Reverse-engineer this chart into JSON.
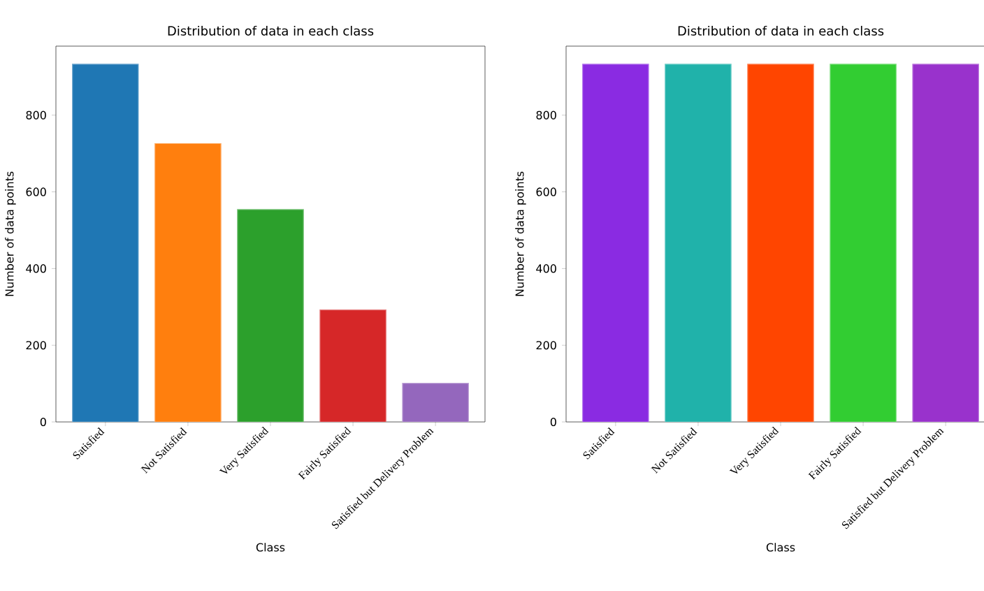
{
  "chart_data": [
    {
      "type": "bar",
      "title": "Distribution of data in each class",
      "xlabel": "Class",
      "ylabel": "Number of data points",
      "categories": [
        "Satisfied",
        "Not Satisfied",
        "Very Satisfied",
        "Fairly Satisfied",
        "Satisfied but Delivery Problem"
      ],
      "values": [
        933,
        726,
        554,
        292,
        101
      ],
      "colors": [
        "#1f77b4",
        "#ff7f0e",
        "#2ca02c",
        "#d62728",
        "#9467bd"
      ],
      "ylim": [
        0,
        980
      ],
      "yticks": [
        0,
        200,
        400,
        600,
        800
      ]
    },
    {
      "type": "bar",
      "title": "Distribution of data in each class",
      "xlabel": "Class",
      "ylabel": "Number of data points",
      "categories": [
        "Satisfied",
        "Not Satisfied",
        "Very Satisfied",
        "Fairly Satisfied",
        "Satisfied but Delivery Problem"
      ],
      "values": [
        933,
        933,
        933,
        933,
        933
      ],
      "colors": [
        "#8a2be2",
        "#20b2aa",
        "#ff4500",
        "#32cd32",
        "#9932cc"
      ],
      "ylim": [
        0,
        980
      ],
      "yticks": [
        0,
        200,
        400,
        600,
        800
      ]
    }
  ]
}
